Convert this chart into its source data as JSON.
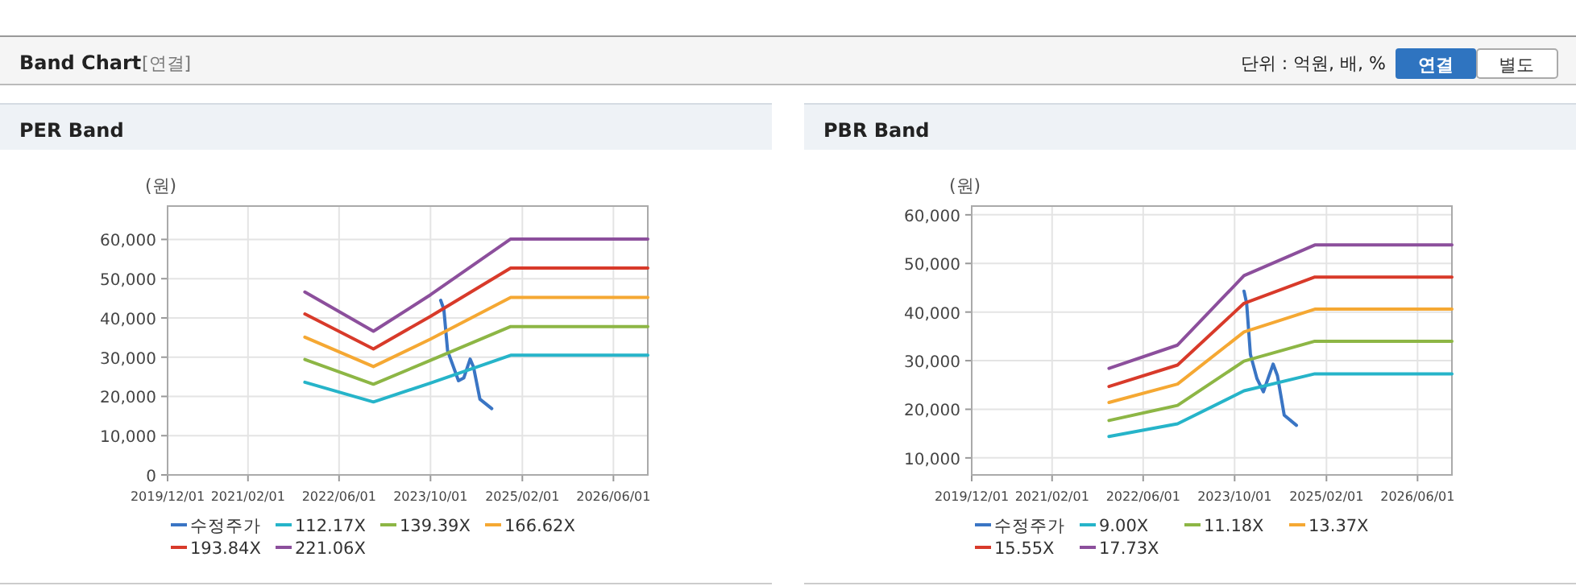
{
  "chart_data": [
    {
      "type": "other",
      "title": "Band Chart",
      "annotations": [
        "[연결]",
        "단위 : 억원, 배, %",
        "연결",
        "별도"
      ]
    },
    {
      "type": "line",
      "title": "PER Band",
      "ylabel": "(원)",
      "grid": true,
      "legend": "bottom",
      "xlim": [
        "2019-12-01",
        "2026-12-01"
      ],
      "xticks": [
        {
          "value": "2019-12-01",
          "label": "2019/12/01"
        },
        {
          "value": "2021-02-01",
          "label": "2021/02/01"
        },
        {
          "value": "2022-06-01",
          "label": "2022/06/01"
        },
        {
          "value": "2023-10-01",
          "label": "2023/10/01"
        },
        {
          "value": "2025-02-01",
          "label": "2025/02/01"
        },
        {
          "value": "2026-06-01",
          "label": "2026/06/01"
        }
      ],
      "ylim": [
        0,
        68500
      ],
      "yticks": [
        0,
        {
          "value": 10000,
          "label": "10,000"
        },
        {
          "value": 20000,
          "label": "20,000"
        },
        {
          "value": 30000,
          "label": "30,000"
        },
        {
          "value": 40000,
          "label": "40,000"
        },
        {
          "value": 50000,
          "label": "50,000"
        },
        {
          "value": 60000,
          "label": "60,000"
        }
      ],
      "series": [
        {
          "name": "수정주가",
          "color": "#3a75c4",
          "x": [
            "2023-11-24",
            "2023-12-11",
            "2023-12-31",
            "2024-02-27",
            "2024-03-26",
            "2024-04-29",
            "2024-05-17",
            "2024-06-20",
            "2024-08-22"
          ],
          "values": [
            44500,
            42200,
            31600,
            24000,
            24700,
            29500,
            27500,
            19300,
            16900
          ]
        },
        {
          "name": "112.17X",
          "color": "#26b4c9",
          "x": [
            "2021-12-01",
            "2022-12-01",
            "2023-10-01",
            "2024-12-01",
            "2026-12-01"
          ],
          "values": [
            23600,
            18600,
            23400,
            30500,
            30500
          ]
        },
        {
          "name": "139.39X",
          "color": "#8db645",
          "x": [
            "2021-12-01",
            "2022-12-01",
            "2023-10-01",
            "2024-12-01",
            "2026-12-01"
          ],
          "values": [
            29400,
            23100,
            29200,
            37800,
            37800
          ]
        },
        {
          "name": "166.62X",
          "color": "#f5a833",
          "x": [
            "2021-12-01",
            "2022-12-01",
            "2023-10-01",
            "2024-12-01",
            "2026-12-01"
          ],
          "values": [
            35100,
            27600,
            34600,
            45200,
            45200
          ]
        },
        {
          "name": "193.84X",
          "color": "#d83a2a",
          "x": [
            "2021-12-01",
            "2022-12-01",
            "2023-10-01",
            "2024-12-01",
            "2026-12-01"
          ],
          "values": [
            41000,
            32100,
            40400,
            52700,
            52700
          ]
        },
        {
          "name": "221.06X",
          "color": "#8c4f9c",
          "x": [
            "2021-12-01",
            "2022-12-01",
            "2023-10-01",
            "2024-12-01",
            "2026-12-01"
          ],
          "values": [
            46600,
            36600,
            45900,
            60100,
            60100
          ]
        }
      ]
    },
    {
      "type": "line",
      "title": "PBR Band",
      "ylabel": "(원)",
      "grid": true,
      "legend": "bottom",
      "xlim": [
        "2019-12-01",
        "2026-12-01"
      ],
      "xticks": [
        {
          "value": "2019-12-01",
          "label": "2019/12/01"
        },
        {
          "value": "2021-02-01",
          "label": "2021/02/01"
        },
        {
          "value": "2022-06-01",
          "label": "2022/06/01"
        },
        {
          "value": "2023-10-01",
          "label": "2023/10/01"
        },
        {
          "value": "2025-02-01",
          "label": "2025/02/01"
        },
        {
          "value": "2026-06-01",
          "label": "2026/06/01"
        }
      ],
      "ylim": [
        6500,
        61800
      ],
      "yticks": [
        {
          "value": 10000,
          "label": "10,000"
        },
        {
          "value": 20000,
          "label": "20,000"
        },
        {
          "value": 30000,
          "label": "30,000"
        },
        {
          "value": 40000,
          "label": "40,000"
        },
        {
          "value": 50000,
          "label": "50,000"
        },
        {
          "value": 60000,
          "label": "60,000"
        }
      ],
      "series": [
        {
          "name": "수정주가",
          "color": "#3a75c4",
          "x": [
            "2023-11-20",
            "2023-12-04",
            "2023-12-24",
            "2024-01-28",
            "2024-03-02",
            "2024-04-23",
            "2024-05-16",
            "2024-06-21",
            "2024-08-25"
          ],
          "values": [
            44300,
            41800,
            31300,
            26300,
            23600,
            29300,
            26900,
            18800,
            16700
          ]
        },
        {
          "name": "9.00X",
          "color": "#26b4c9",
          "x": [
            "2021-12-01",
            "2022-12-01",
            "2023-11-20",
            "2024-12-01",
            "2026-12-01"
          ],
          "values": [
            14400,
            17000,
            23800,
            27300,
            27300
          ]
        },
        {
          "name": "11.18X",
          "color": "#8db645",
          "x": [
            "2021-12-01",
            "2022-12-01",
            "2023-11-20",
            "2024-12-01",
            "2026-12-01"
          ],
          "values": [
            17700,
            20800,
            29900,
            34000,
            34000
          ]
        },
        {
          "name": "13.37X",
          "color": "#f5a833",
          "x": [
            "2021-12-01",
            "2022-12-01",
            "2023-11-20",
            "2024-12-01",
            "2026-12-01"
          ],
          "values": [
            21400,
            25200,
            35900,
            40600,
            40600
          ]
        },
        {
          "name": "15.55X",
          "color": "#d83a2a",
          "x": [
            "2021-12-01",
            "2022-12-01",
            "2023-11-20",
            "2024-12-01",
            "2026-12-01"
          ],
          "values": [
            24700,
            29100,
            41800,
            47200,
            47200
          ]
        },
        {
          "name": "17.73X",
          "color": "#8c4f9c",
          "x": [
            "2021-12-01",
            "2022-12-01",
            "2023-11-20",
            "2024-12-01",
            "2026-12-01"
          ],
          "values": [
            28400,
            33200,
            47500,
            53800,
            53800
          ]
        }
      ]
    }
  ]
}
